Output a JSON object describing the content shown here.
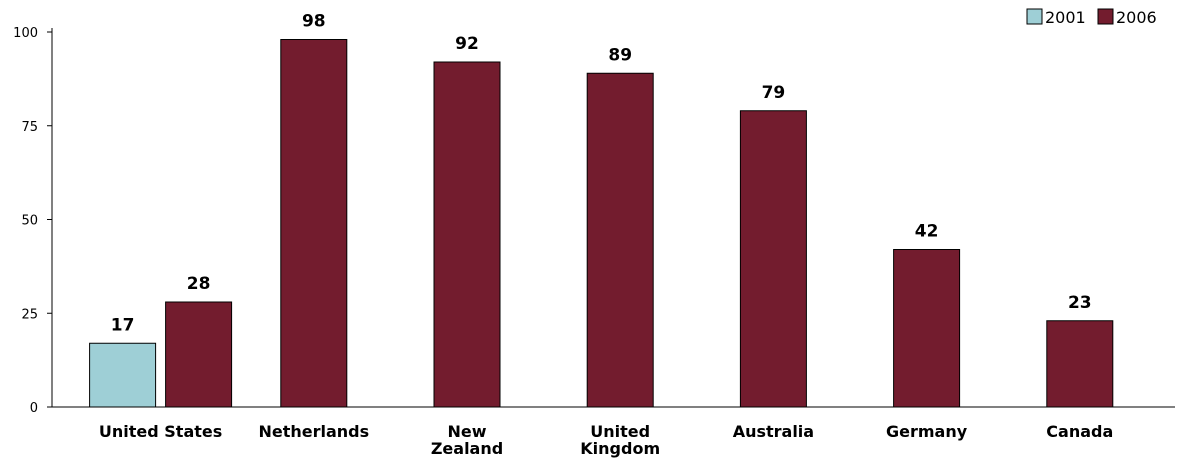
{
  "chart_data": {
    "type": "bar",
    "title": "",
    "xlabel": "",
    "ylabel": "",
    "ylim": [
      0,
      100
    ],
    "yticks": [
      0,
      25,
      50,
      75,
      100
    ],
    "grid": false,
    "legend_position": "top-right",
    "categories": [
      "United States",
      "Netherlands",
      "New Zealand",
      "United Kingdom",
      "Australia",
      "Germany",
      "Canada"
    ],
    "category_label_lines": [
      [
        "United States"
      ],
      [
        "Netherlands"
      ],
      [
        "New",
        "Zealand"
      ],
      [
        "United",
        "Kingdom"
      ],
      [
        "Australia"
      ],
      [
        "Germany"
      ],
      [
        "Canada"
      ]
    ],
    "series": [
      {
        "name": "2001",
        "color": "#9ecfd6",
        "values": [
          17,
          null,
          null,
          null,
          null,
          null,
          null
        ]
      },
      {
        "name": "2006",
        "color": "#731c2e",
        "values": [
          28,
          98,
          92,
          89,
          79,
          42,
          23
        ]
      }
    ]
  }
}
